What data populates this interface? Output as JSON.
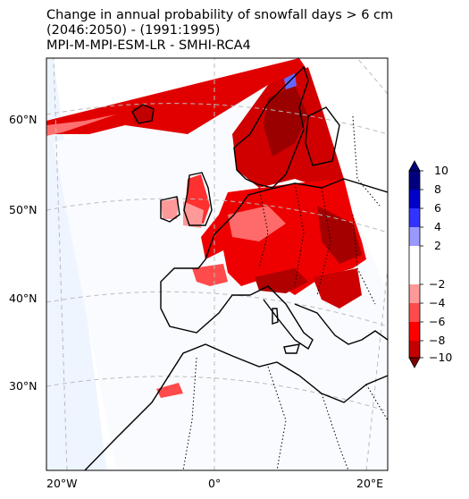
{
  "title": {
    "line1": "Change in annual probability of snowfall days > 6 cm",
    "line2": "(2046:2050) - (1991:1995)",
    "line3": "MPI-M-MPI-ESM-LR - SMHI-RCA4"
  },
  "axes": {
    "lat_labels": [
      "60°N",
      "50°N",
      "40°N",
      "30°N"
    ],
    "lon_labels": [
      "20°W",
      "0°",
      "20°E"
    ]
  },
  "colorbar": {
    "ticks": [
      "10",
      "8",
      "6",
      "4",
      "2",
      "−2",
      "−4",
      "−6",
      "−8",
      "−10"
    ],
    "colors": {
      "10": "#00007f",
      "8": "#0000c8",
      "6": "#3333ff",
      "4": "#9999ff",
      "2": "#ffffff",
      "-2": "#ff9999",
      "-4": "#ff4b4b",
      "-6": "#ff0000",
      "-8": "#c40000",
      "-10": "#7f0000"
    }
  },
  "map": {
    "projection": "rotated-pole",
    "gridlines": "dashed-gray",
    "land_outline": "black",
    "borders": "dotted"
  }
}
